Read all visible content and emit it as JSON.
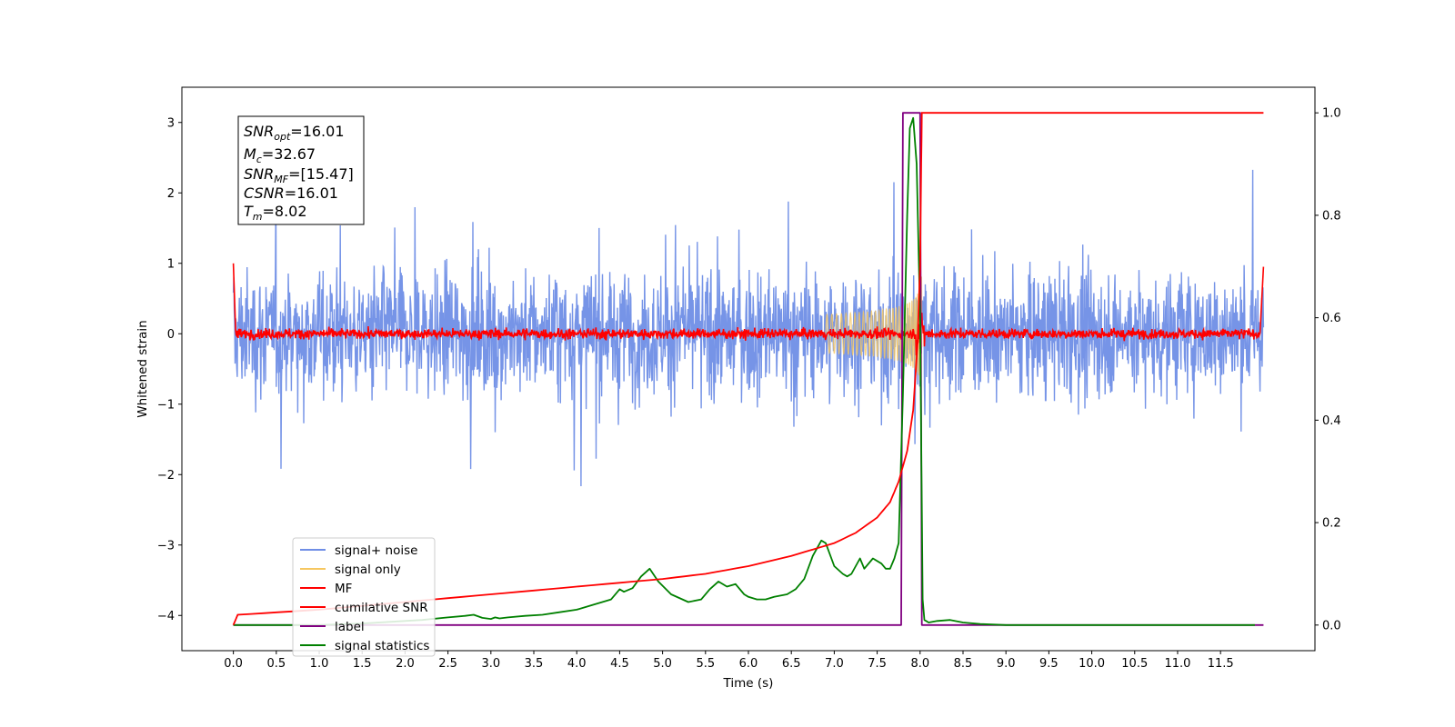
{
  "chart_data": {
    "type": "line",
    "xlabel": "Time (s)",
    "ylabel": "Whitened strain",
    "xlim": [
      -0.6,
      12.6
    ],
    "ylim": [
      -4.5,
      3.5
    ],
    "ylim_right": [
      -0.05,
      1.05
    ],
    "x_ticks": [
      0,
      0.5,
      1,
      1.5,
      2,
      2.5,
      3,
      3.5,
      4,
      4.5,
      5,
      5.5,
      6,
      6.5,
      7,
      7.5,
      8,
      8.5,
      9,
      9.5,
      10,
      10.5,
      11,
      11.5
    ],
    "x_tick_labels": [
      "0.0",
      "0.5",
      "1.0",
      "1.5",
      "2.0",
      "2.5",
      "3.0",
      "3.5",
      "4.0",
      "4.5",
      "5.0",
      "5.5",
      "6.0",
      "6.5",
      "7.0",
      "7.5",
      "8.0",
      "8.5",
      "9.0",
      "9.5",
      "10.0",
      "10.5",
      "11.0",
      "11.5"
    ],
    "y_ticks": [
      -4,
      -3,
      -2,
      -1,
      0,
      1,
      2,
      3
    ],
    "y_tick_labels": [
      "−4",
      "−3",
      "−2",
      "−1",
      "0",
      "1",
      "2",
      "3"
    ],
    "y2_ticks": [
      0,
      0.2,
      0.4,
      0.6,
      0.8,
      1.0
    ],
    "y2_tick_labels": [
      "0.0",
      "0.2",
      "0.4",
      "0.6",
      "0.8",
      "1.0"
    ],
    "legend_position": "lower-left",
    "series": [
      {
        "name": "signal+ noise",
        "color": "#6f8ee6",
        "axis": "left",
        "description": "white-noise band roughly between -1.5 and 1.5 with spikes to about ±2.5, t from 0 to 12"
      },
      {
        "name": "signal only",
        "color": "#f6c760",
        "axis": "left",
        "description": "chirp growing in amplitude up to about 8.0 s then stopping"
      },
      {
        "name": "MF",
        "color": "#ff0000",
        "axis": "left",
        "description": "noisy trace around 0 with amplitude ~0.15; starts and ends near 1.0"
      },
      {
        "name": "cumilative SNR",
        "color": "#ff0000",
        "axis": "right",
        "x": [
          0,
          0.05,
          1,
          2,
          3,
          4,
          5,
          5.5,
          6,
          6.5,
          7,
          7.25,
          7.5,
          7.65,
          7.75,
          7.85,
          7.92,
          7.97,
          8.0,
          8.02,
          12
        ],
        "values": [
          0,
          0.02,
          0.03,
          0.045,
          0.06,
          0.075,
          0.09,
          0.1,
          0.115,
          0.135,
          0.16,
          0.18,
          0.21,
          0.24,
          0.28,
          0.34,
          0.42,
          0.55,
          0.7,
          1.0,
          1.0
        ]
      },
      {
        "name": "label",
        "color": "#800080",
        "axis": "right",
        "x": [
          0,
          7.78,
          7.8,
          8.0,
          8.02,
          12
        ],
        "values": [
          0,
          0,
          1,
          1,
          0,
          0
        ]
      },
      {
        "name": "signal statistics",
        "color": "#008000",
        "axis": "right",
        "x": [
          0,
          1,
          1.5,
          2,
          2.2,
          2.5,
          2.7,
          2.8,
          2.9,
          3.0,
          3.05,
          3.1,
          3.2,
          3.4,
          3.6,
          3.8,
          4.0,
          4.2,
          4.4,
          4.5,
          4.55,
          4.65,
          4.75,
          4.85,
          4.95,
          5.1,
          5.3,
          5.45,
          5.55,
          5.65,
          5.75,
          5.85,
          5.95,
          6.0,
          6.1,
          6.2,
          6.3,
          6.45,
          6.55,
          6.65,
          6.75,
          6.85,
          6.9,
          7.0,
          7.1,
          7.15,
          7.2,
          7.3,
          7.35,
          7.45,
          7.55,
          7.6,
          7.65,
          7.7,
          7.75,
          7.8,
          7.85,
          7.88,
          7.92,
          7.96,
          8.0,
          8.03,
          8.05,
          8.1,
          8.2,
          8.35,
          8.5,
          8.7,
          9.0,
          11.9
        ],
        "values": [
          0,
          0,
          0.003,
          0.008,
          0.01,
          0.015,
          0.018,
          0.02,
          0.014,
          0.012,
          0.015,
          0.013,
          0.015,
          0.018,
          0.02,
          0.025,
          0.03,
          0.04,
          0.05,
          0.07,
          0.065,
          0.072,
          0.095,
          0.11,
          0.085,
          0.06,
          0.045,
          0.05,
          0.07,
          0.085,
          0.075,
          0.08,
          0.06,
          0.055,
          0.05,
          0.05,
          0.055,
          0.06,
          0.07,
          0.09,
          0.135,
          0.165,
          0.16,
          0.115,
          0.1,
          0.095,
          0.1,
          0.13,
          0.11,
          0.13,
          0.12,
          0.11,
          0.11,
          0.13,
          0.16,
          0.45,
          0.8,
          0.97,
          0.99,
          0.9,
          0.6,
          0.05,
          0.01,
          0.005,
          0.008,
          0.01,
          0.005,
          0.002,
          0.0,
          0.0
        ]
      }
    ]
  },
  "info_box": {
    "snr_opt": "=16.01",
    "mc": "=32.67",
    "snr_mf": "=[15.47]",
    "csnr": "=16.01",
    "tm": "=8.02"
  }
}
